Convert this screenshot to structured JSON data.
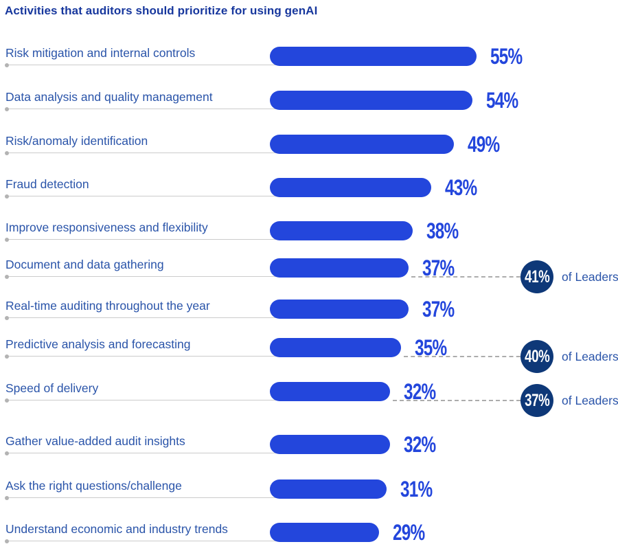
{
  "title": "Activities that auditors should prioritize for using genAI",
  "chart_data": {
    "type": "bar",
    "orientation": "horizontal",
    "unit": "%",
    "value_axis_range": [
      0,
      100
    ],
    "gridlines": false,
    "legend": "none",
    "categories": [
      "Risk mitigation and internal controls",
      "Data analysis and quality management",
      "Risk/anomaly identification",
      "Fraud detection",
      "Improve responsiveness and flexibility",
      "Document and data gathering",
      "Real-time auditing throughout the year",
      "Predictive analysis and forecasting",
      "Speed of delivery",
      "Gather value-added audit insights",
      "Ask the right questions/challenge",
      "Understand economic and industry trends"
    ],
    "values": [
      55,
      54,
      49,
      43,
      38,
      37,
      37,
      35,
      32,
      32,
      31,
      29
    ],
    "rows": [
      {
        "label": "Risk mitigation and internal controls",
        "value": 55,
        "leader": null
      },
      {
        "label": "Data analysis and quality management",
        "value": 54,
        "leader": null
      },
      {
        "label": "Risk/anomaly identification",
        "value": 49,
        "leader": null
      },
      {
        "label": "Fraud detection",
        "value": 43,
        "leader": null
      },
      {
        "label": "Improve responsiveness and flexibility",
        "value": 38,
        "leader": null
      },
      {
        "label": "Document and data gathering",
        "value": 37,
        "leader": {
          "value": 41,
          "label": "of Leaders"
        }
      },
      {
        "label": "Real-time auditing throughout the year",
        "value": 37,
        "leader": null
      },
      {
        "label": "Predictive analysis and forecasting",
        "value": 35,
        "leader": {
          "value": 40,
          "label": "of Leaders"
        }
      },
      {
        "label": "Speed of delivery",
        "value": 32,
        "leader": {
          "value": 37,
          "label": "of Leaders"
        }
      },
      {
        "label": "Gather value-added audit insights",
        "value": 32,
        "leader": null
      },
      {
        "label": "Ask the right questions/challenge",
        "value": 31,
        "leader": null
      },
      {
        "label": "Understand economic and industry trends",
        "value": 29,
        "leader": null
      }
    ],
    "colors": {
      "bar": "#2346DC",
      "value_label": "#2346DC",
      "title": "#17379D",
      "category_label": "#2A54A9",
      "leader_badge": "#0E3878",
      "leader_badge_text": "#FFFFFF",
      "axis_line": "#CBCBCB",
      "axis_dot": "#B3B3B3",
      "connector_dash": "#ACACAC"
    }
  }
}
